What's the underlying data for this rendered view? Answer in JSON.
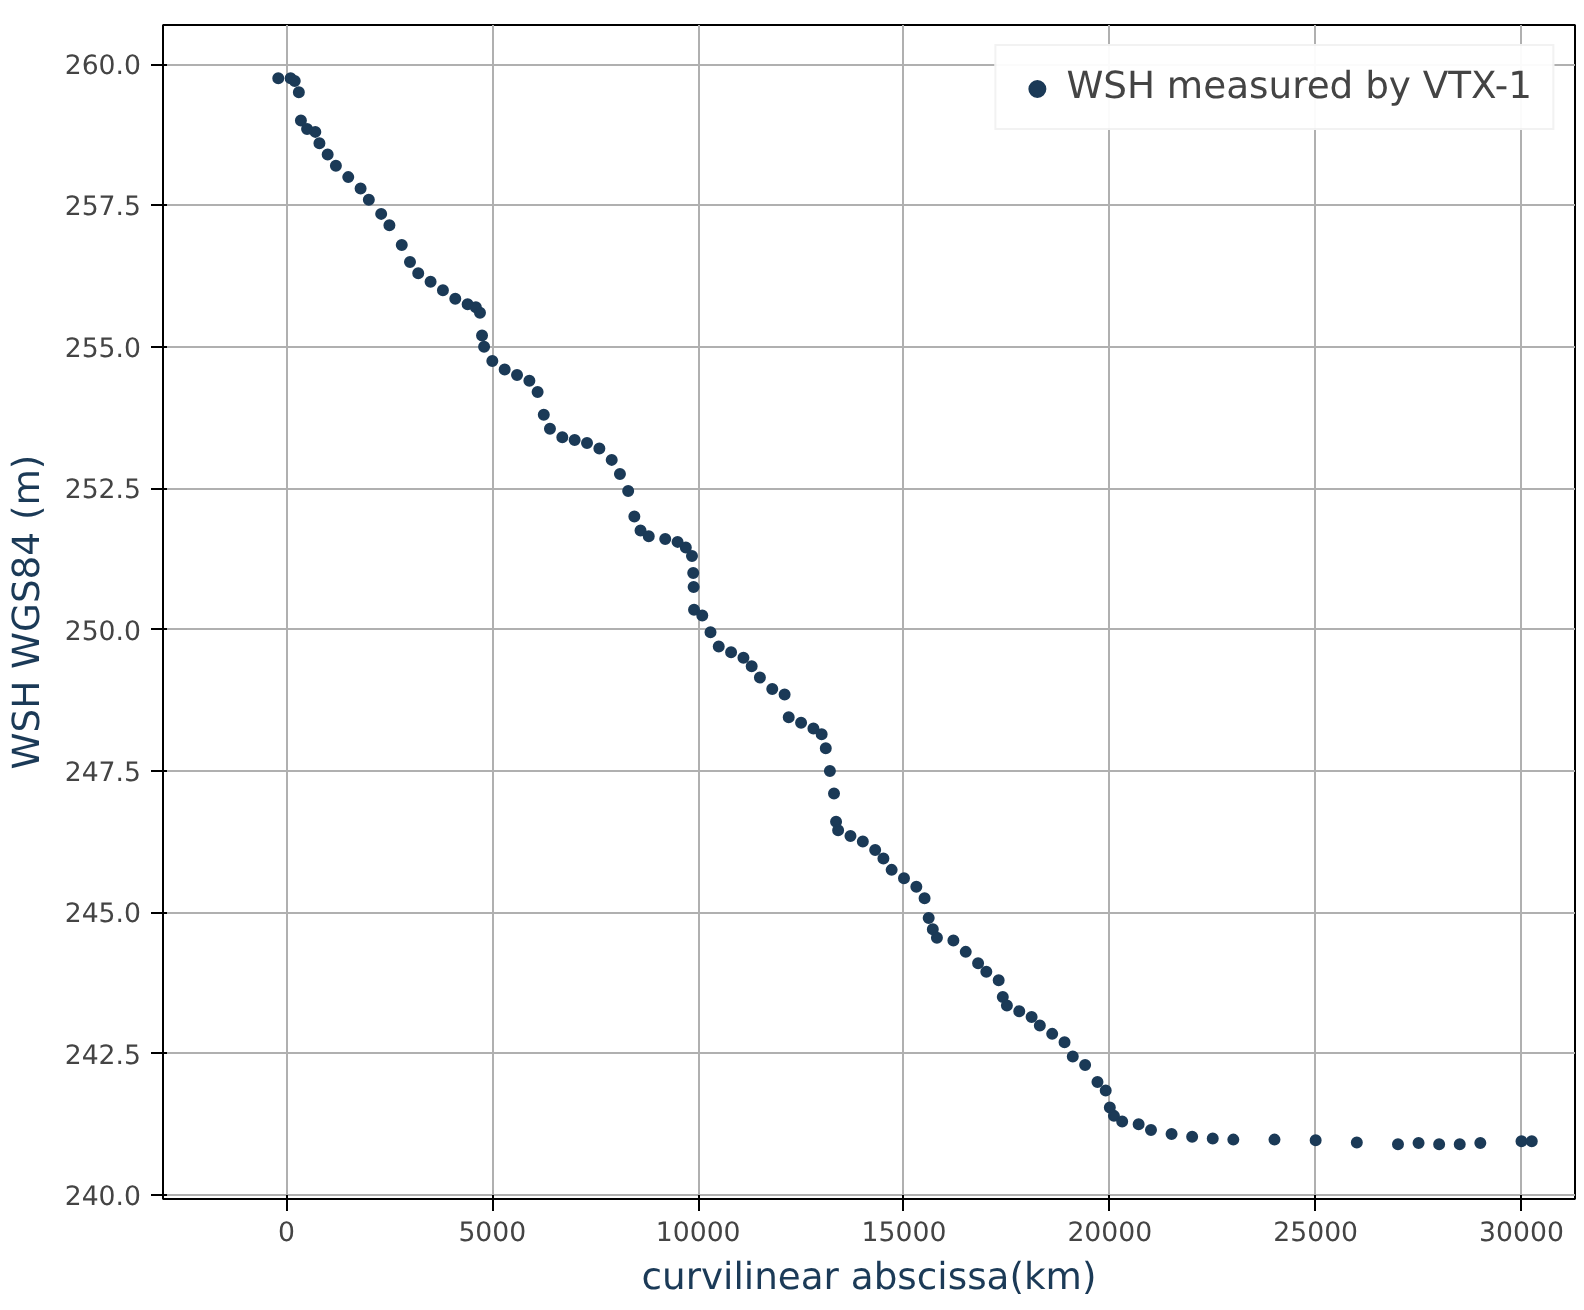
{
  "chart_data": {
    "type": "scatter",
    "xlabel": "curvilinear abscissa(km)",
    "ylabel": "WSH WGS84 (m)",
    "x": [
      -200,
      100,
      200,
      300,
      350,
      500,
      700,
      800,
      1000,
      1200,
      1500,
      1800,
      2000,
      2300,
      2500,
      2800,
      3000,
      3200,
      3500,
      3800,
      4100,
      4400,
      4600,
      4700,
      4750,
      4800,
      5000,
      5300,
      5600,
      5900,
      6100,
      6250,
      6400,
      6700,
      7000,
      7300,
      7600,
      7900,
      8100,
      8300,
      8450,
      8600,
      8800,
      9200,
      9500,
      9700,
      9850,
      9880,
      9890,
      9900,
      10100,
      10300,
      10500,
      10800,
      11100,
      11300,
      11500,
      11800,
      12100,
      12200,
      12500,
      12800,
      13000,
      13100,
      13200,
      13300,
      13350,
      13400,
      13700,
      14000,
      14300,
      14500,
      14700,
      15000,
      15300,
      15500,
      15600,
      15700,
      15800,
      16200,
      16500,
      16800,
      17000,
      17300,
      17400,
      17500,
      17800,
      18100,
      18300,
      18600,
      18900,
      19100,
      19400,
      19700,
      19900,
      20000,
      20100,
      20300,
      20700,
      21000,
      21500,
      22000,
      22500,
      23000,
      24000,
      25000,
      26000,
      27000,
      27500,
      28000,
      28500,
      29000,
      30000,
      30250
    ],
    "series": [
      {
        "name": "WSH measured by VTX-1",
        "color": "#1b3a57",
        "values": [
          259.75,
          259.75,
          259.7,
          259.5,
          259.0,
          258.85,
          258.8,
          258.6,
          258.4,
          258.2,
          258.0,
          257.8,
          257.6,
          257.35,
          257.15,
          256.8,
          256.5,
          256.3,
          256.15,
          256.0,
          255.85,
          255.75,
          255.7,
          255.6,
          255.2,
          255.0,
          254.75,
          254.6,
          254.5,
          254.4,
          254.2,
          253.8,
          253.55,
          253.4,
          253.35,
          253.3,
          253.2,
          253.0,
          252.75,
          252.45,
          252.0,
          251.75,
          251.65,
          251.6,
          251.55,
          251.45,
          251.3,
          251.0,
          250.75,
          250.35,
          250.25,
          249.95,
          249.7,
          249.6,
          249.5,
          249.35,
          249.15,
          248.95,
          248.85,
          248.45,
          248.35,
          248.25,
          248.15,
          247.9,
          247.5,
          247.1,
          246.6,
          246.45,
          246.35,
          246.25,
          246.1,
          245.95,
          245.75,
          245.6,
          245.45,
          245.25,
          244.9,
          244.7,
          244.55,
          244.5,
          244.3,
          244.1,
          243.95,
          243.8,
          243.5,
          243.35,
          243.25,
          243.15,
          243.0,
          242.85,
          242.7,
          242.45,
          242.3,
          242.0,
          241.85,
          241.55,
          241.4,
          241.3,
          241.25,
          241.15,
          241.08,
          241.03,
          241.0,
          240.98,
          240.98,
          240.97,
          240.93,
          240.9,
          240.92,
          240.9,
          240.9,
          240.92,
          240.95,
          240.95
        ]
      }
    ],
    "xlim": [
      -3000,
      31300
    ],
    "ylim": [
      239.93,
      260.69
    ],
    "xticks": [
      0,
      5000,
      10000,
      15000,
      20000,
      25000,
      30000
    ],
    "yticks": [
      {
        "value": 240,
        "label": "240.0"
      },
      242.5,
      {
        "value": 245,
        "label": "245.0"
      },
      247.5,
      {
        "value": 250,
        "label": "250.0"
      },
      252.5,
      {
        "value": 255,
        "label": "255.0"
      },
      257.5,
      {
        "value": 260,
        "label": "260.0"
      }
    ],
    "grid": true,
    "legend": "top right",
    "marker": "circle"
  }
}
